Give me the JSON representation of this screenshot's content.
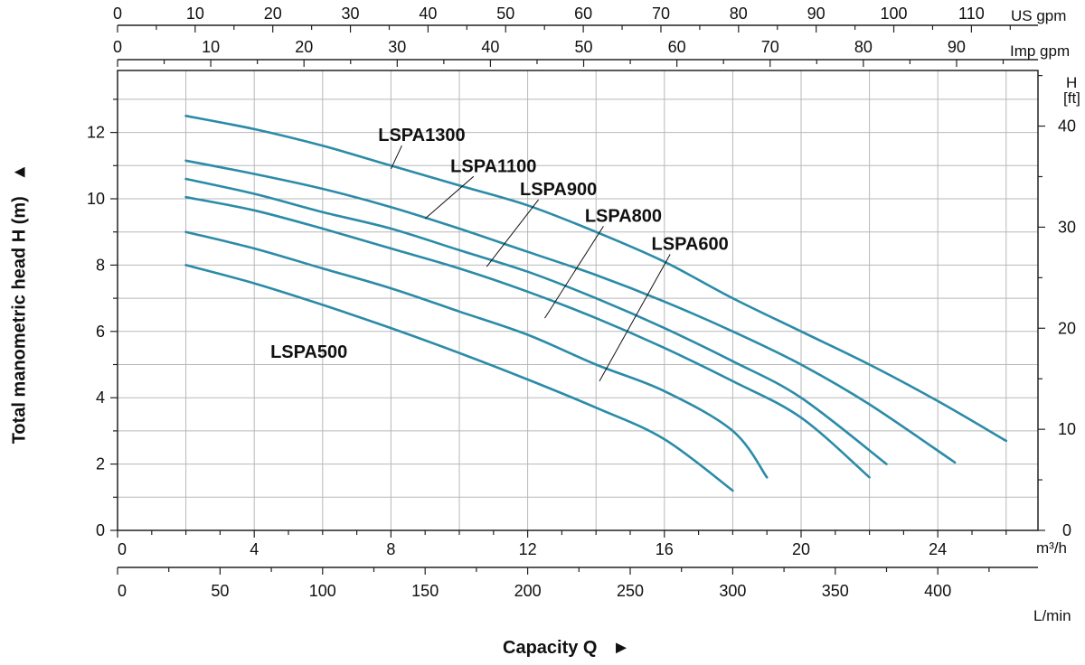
{
  "chart_data": {
    "type": "line",
    "title": "",
    "xlabel": "Capacity Q",
    "xlabel_arrow": "►",
    "ylabel": "Total manometric head H (m)",
    "ylabel_arrow": "▲",
    "x_unit_primary": "m³/h",
    "x_unit_lmin": "L/min",
    "x_unit_us": "US gpm",
    "x_unit_imp": "Imp gpm",
    "y_unit_ft_top": "H",
    "y_unit_ft_bottom": "[ft]",
    "xlim": [
      0,
      26.5
    ],
    "ylim": [
      0,
      14
    ],
    "x_ticks": [
      0,
      4,
      8,
      12,
      16,
      20,
      24
    ],
    "y_ticks": [
      0,
      2,
      4,
      6,
      8,
      10,
      12
    ],
    "lmin_ticks": [
      0,
      50,
      100,
      150,
      200,
      250,
      300,
      350,
      400
    ],
    "us_gpm_ticks": [
      0,
      10,
      20,
      30,
      40,
      50,
      60,
      70,
      80,
      90,
      100,
      110
    ],
    "imp_gpm_ticks": [
      0,
      10,
      20,
      30,
      40,
      50,
      60,
      70,
      80,
      90
    ],
    "ft_ticks": [
      0,
      10,
      20,
      30,
      40
    ],
    "grid": true,
    "line_color": "#2b8ba8",
    "series": [
      {
        "name": "LSPA1300",
        "x": [
          2,
          4,
          6,
          8,
          10,
          12,
          14,
          16,
          18,
          20,
          22,
          24,
          26
        ],
        "y": [
          12.5,
          12.1,
          11.6,
          11.0,
          10.4,
          9.8,
          9.0,
          8.1,
          7.0,
          6.0,
          5.0,
          3.9,
          2.7
        ]
      },
      {
        "name": "LSPA1100",
        "x": [
          2,
          4,
          6,
          8,
          10,
          12,
          14,
          16,
          18,
          20,
          22,
          24.5
        ],
        "y": [
          11.15,
          10.75,
          10.3,
          9.75,
          9.1,
          8.4,
          7.7,
          6.9,
          6.0,
          5.0,
          3.8,
          2.05
        ]
      },
      {
        "name": "LSPA900",
        "x": [
          2,
          4,
          6,
          8,
          10,
          12,
          14,
          16,
          18,
          20,
          22.5
        ],
        "y": [
          10.6,
          10.15,
          9.6,
          9.1,
          8.45,
          7.8,
          7.0,
          6.1,
          5.1,
          4.0,
          2.0
        ]
      },
      {
        "name": "LSPA800",
        "x": [
          2,
          4,
          6,
          8,
          10,
          12,
          14,
          16,
          18,
          20,
          22
        ],
        "y": [
          10.05,
          9.65,
          9.1,
          8.5,
          7.9,
          7.2,
          6.4,
          5.5,
          4.5,
          3.4,
          1.6
        ]
      },
      {
        "name": "LSPA600",
        "x": [
          2,
          4,
          6,
          8,
          10,
          12,
          14,
          16,
          18,
          19
        ],
        "y": [
          9.0,
          8.5,
          7.9,
          7.3,
          6.6,
          5.9,
          5.0,
          4.2,
          3.0,
          1.6
        ]
      },
      {
        "name": "LSPA500",
        "x": [
          2,
          4,
          6,
          8,
          10,
          12,
          14,
          16,
          18
        ],
        "y": [
          8.0,
          7.45,
          6.8,
          6.1,
          5.35,
          4.55,
          3.7,
          2.75,
          1.2
        ]
      }
    ],
    "annotations": [
      {
        "text": "LSPA1300",
        "series": "LSPA1300",
        "x": 8.9,
        "y": 11.93,
        "pointer_x": 8,
        "pointer_y": 10.9
      },
      {
        "text": "LSPA1100",
        "series": "LSPA1100",
        "x": 11.0,
        "y": 11.0,
        "pointer_x": 9,
        "pointer_y": 9.4
      },
      {
        "text": "LSPA900",
        "series": "LSPA900",
        "x": 12.9,
        "y": 10.3,
        "pointer_x": 10.8,
        "pointer_y": 7.95
      },
      {
        "text": "LSPA800",
        "series": "LSPA800",
        "x": 14.8,
        "y": 9.5,
        "pointer_x": 12.5,
        "pointer_y": 6.4
      },
      {
        "text": "LSPA600",
        "series": "LSPA600",
        "x": 16.75,
        "y": 8.65,
        "pointer_x": 14.1,
        "pointer_y": 4.5
      },
      {
        "text": "LSPA500",
        "series": "LSPA500",
        "x": 5.6,
        "y": 5.4
      }
    ]
  }
}
